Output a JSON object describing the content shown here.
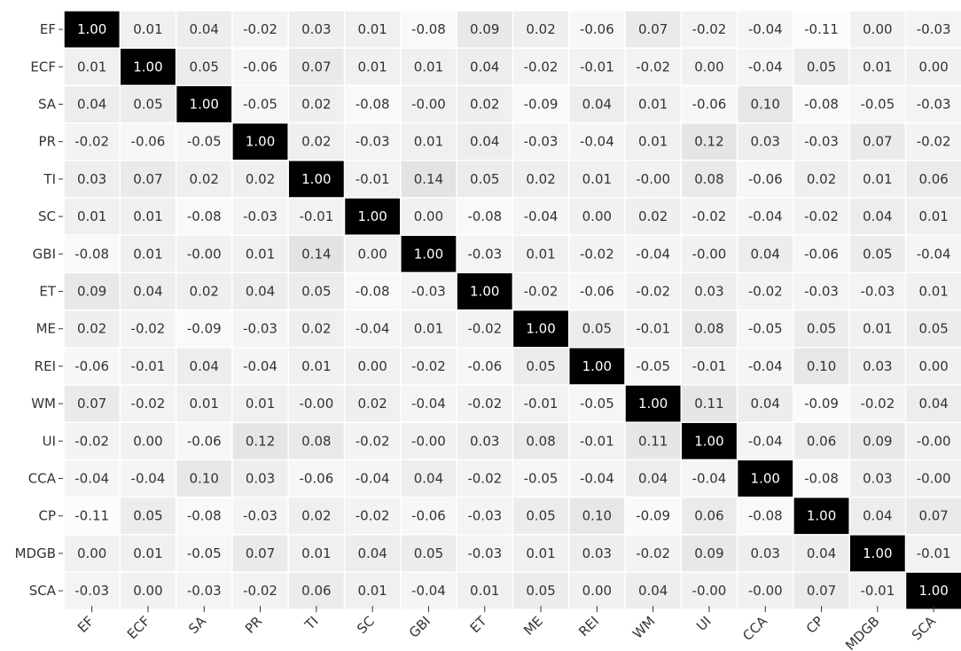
{
  "chart_data": {
    "type": "heatmap",
    "title": "",
    "xlabel": "",
    "ylabel": "",
    "grid": false,
    "legend": "none",
    "labels": [
      "EF",
      "ECF",
      "SA",
      "PR",
      "TI",
      "SC",
      "GBI",
      "ET",
      "ME",
      "REI",
      "WM",
      "UI",
      "CCA",
      "CP",
      "MDGB",
      "SCA"
    ],
    "matrix": [
      [
        "1.00",
        "0.01",
        "0.04",
        "-0.02",
        "0.03",
        "0.01",
        "-0.08",
        "0.09",
        "0.02",
        "-0.06",
        "0.07",
        "-0.02",
        "-0.04",
        "-0.11",
        "0.00",
        "-0.03"
      ],
      [
        "0.01",
        "1.00",
        "0.05",
        "-0.06",
        "0.07",
        "0.01",
        "0.01",
        "0.04",
        "-0.02",
        "-0.01",
        "-0.02",
        "0.00",
        "-0.04",
        "0.05",
        "0.01",
        "0.00"
      ],
      [
        "0.04",
        "0.05",
        "1.00",
        "-0.05",
        "0.02",
        "-0.08",
        "-0.00",
        "0.02",
        "-0.09",
        "0.04",
        "0.01",
        "-0.06",
        "0.10",
        "-0.08",
        "-0.05",
        "-0.03"
      ],
      [
        "-0.02",
        "-0.06",
        "-0.05",
        "1.00",
        "0.02",
        "-0.03",
        "0.01",
        "0.04",
        "-0.03",
        "-0.04",
        "0.01",
        "0.12",
        "0.03",
        "-0.03",
        "0.07",
        "-0.02"
      ],
      [
        "0.03",
        "0.07",
        "0.02",
        "0.02",
        "1.00",
        "-0.01",
        "0.14",
        "0.05",
        "0.02",
        "0.01",
        "-0.00",
        "0.08",
        "-0.06",
        "0.02",
        "0.01",
        "0.06"
      ],
      [
        "0.01",
        "0.01",
        "-0.08",
        "-0.03",
        "-0.01",
        "1.00",
        "0.00",
        "-0.08",
        "-0.04",
        "0.00",
        "0.02",
        "-0.02",
        "-0.04",
        "-0.02",
        "0.04",
        "0.01"
      ],
      [
        "-0.08",
        "0.01",
        "-0.00",
        "0.01",
        "0.14",
        "0.00",
        "1.00",
        "-0.03",
        "0.01",
        "-0.02",
        "-0.04",
        "-0.00",
        "0.04",
        "-0.06",
        "0.05",
        "-0.04"
      ],
      [
        "0.09",
        "0.04",
        "0.02",
        "0.04",
        "0.05",
        "-0.08",
        "-0.03",
        "1.00",
        "-0.02",
        "-0.06",
        "-0.02",
        "0.03",
        "-0.02",
        "-0.03",
        "-0.03",
        "0.01"
      ],
      [
        "0.02",
        "-0.02",
        "-0.09",
        "-0.03",
        "0.02",
        "-0.04",
        "0.01",
        "-0.02",
        "1.00",
        "0.05",
        "-0.01",
        "0.08",
        "-0.05",
        "0.05",
        "0.01",
        "0.05"
      ],
      [
        "-0.06",
        "-0.01",
        "0.04",
        "-0.04",
        "0.01",
        "0.00",
        "-0.02",
        "-0.06",
        "0.05",
        "1.00",
        "-0.05",
        "-0.01",
        "-0.04",
        "0.10",
        "0.03",
        "0.00"
      ],
      [
        "0.07",
        "-0.02",
        "0.01",
        "0.01",
        "-0.00",
        "0.02",
        "-0.04",
        "-0.02",
        "-0.01",
        "-0.05",
        "1.00",
        "0.11",
        "0.04",
        "-0.09",
        "-0.02",
        "0.04"
      ],
      [
        "-0.02",
        "0.00",
        "-0.06",
        "0.12",
        "0.08",
        "-0.02",
        "-0.00",
        "0.03",
        "0.08",
        "-0.01",
        "0.11",
        "1.00",
        "-0.04",
        "0.06",
        "0.09",
        "-0.00"
      ],
      [
        "-0.04",
        "-0.04",
        "0.10",
        "0.03",
        "-0.06",
        "-0.04",
        "0.04",
        "-0.02",
        "-0.05",
        "-0.04",
        "0.04",
        "-0.04",
        "1.00",
        "-0.08",
        "0.03",
        "-0.00"
      ],
      [
        "-0.11",
        "0.05",
        "-0.08",
        "-0.03",
        "0.02",
        "-0.02",
        "-0.06",
        "-0.03",
        "0.05",
        "0.10",
        "-0.09",
        "0.06",
        "-0.08",
        "1.00",
        "0.04",
        "0.07"
      ],
      [
        "0.00",
        "0.01",
        "-0.05",
        "0.07",
        "0.01",
        "0.04",
        "0.05",
        "-0.03",
        "0.01",
        "0.03",
        "-0.02",
        "0.09",
        "0.03",
        "0.04",
        "1.00",
        "-0.01"
      ],
      [
        "-0.03",
        "0.00",
        "-0.03",
        "-0.02",
        "0.06",
        "0.01",
        "-0.04",
        "0.01",
        "0.05",
        "0.00",
        "0.04",
        "-0.00",
        "-0.00",
        "0.07",
        "-0.01",
        "1.00"
      ]
    ],
    "colors": {
      "high": "#000000",
      "low": "#ffffff",
      "text_dark": "#333333",
      "text_light": "#ffffff",
      "cell_border": "#ffffff"
    }
  }
}
